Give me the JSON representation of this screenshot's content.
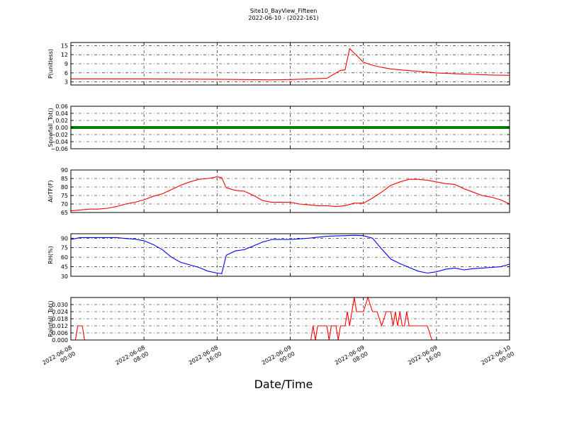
{
  "figure": {
    "title_line1": "Site10_BayView_Fifteen",
    "title_line2": "2022-06-10 - (2022-161)",
    "xlabel": "Date/Time"
  },
  "chart_data": [
    {
      "type": "line",
      "ylabel": "P(unitless)",
      "ylim": [
        2,
        16
      ],
      "yticks": [
        3,
        6,
        9,
        12,
        15
      ],
      "ytick_labels": [
        "3",
        "6",
        "9",
        "12",
        "15"
      ],
      "color": "#ff0000",
      "grid": true,
      "x": [
        0,
        8,
        16,
        22,
        24,
        26,
        28,
        29.5,
        30,
        30.5,
        31,
        31.5,
        32,
        33,
        34,
        35,
        36,
        38,
        40,
        42,
        44,
        46,
        48
      ],
      "y": [
        4,
        4,
        3.9,
        3.7,
        3.8,
        4,
        4.2,
        6.8,
        7,
        14,
        12.5,
        11,
        9.5,
        8.5,
        7.8,
        7.3,
        7,
        6.5,
        6,
        5.7,
        5.5,
        5.3,
        5.2
      ]
    },
    {
      "type": "line",
      "ylabel": "Snowfall_Tot()",
      "ylim": [
        -0.06,
        0.06
      ],
      "yticks": [
        -0.06,
        -0.04,
        -0.02,
        0.0,
        0.02,
        0.04,
        0.06
      ],
      "ytick_labels": [
        "−0.06",
        "−0.04",
        "−0.02",
        "0.00",
        "0.02",
        "0.04",
        "0.06"
      ],
      "color": "#008000",
      "grid": true,
      "x": [
        0,
        48
      ],
      "y": [
        0,
        0
      ]
    },
    {
      "type": "line",
      "ylabel": "AirTF(F)",
      "ylim": [
        65,
        90
      ],
      "yticks": [
        65,
        70,
        75,
        80,
        85,
        90
      ],
      "ytick_labels": [
        "65",
        "70",
        "75",
        "80",
        "85",
        "90"
      ],
      "color": "#ff0000",
      "grid": true,
      "x": [
        0,
        1,
        2,
        3,
        4,
        5,
        6,
        7,
        8,
        9,
        10,
        11,
        12,
        13,
        14,
        15,
        16,
        16.5,
        17,
        18,
        19,
        20,
        21,
        22,
        23,
        24,
        25,
        26,
        27,
        28,
        29,
        30,
        31,
        32,
        33,
        34,
        35,
        36,
        37,
        38,
        39,
        40,
        41,
        42,
        43,
        44,
        45,
        46,
        47,
        48
      ],
      "y": [
        66,
        66.5,
        67,
        67,
        67.5,
        68.5,
        70,
        71,
        72.5,
        74.5,
        76,
        78.5,
        81,
        83,
        84.5,
        85,
        86,
        85.5,
        79.5,
        78,
        77.5,
        75,
        72,
        71,
        71,
        71,
        70,
        69.5,
        69,
        69,
        68.5,
        69,
        70.5,
        70.5,
        73.5,
        77,
        81,
        83,
        84.5,
        84.5,
        84,
        83,
        82,
        81.5,
        79,
        77,
        75,
        74,
        72.5,
        70
      ]
    },
    {
      "type": "line",
      "ylabel": "RH(%)",
      "ylim": [
        30,
        97
      ],
      "yticks": [
        30,
        45,
        60,
        75,
        90
      ],
      "ytick_labels": [
        "30",
        "45",
        "60",
        "75",
        "90"
      ],
      "color": "#0000ff",
      "grid": true,
      "x": [
        0,
        1,
        2,
        3,
        4,
        5,
        6,
        7,
        8,
        9,
        10,
        11,
        12,
        13,
        14,
        15,
        16,
        16.5,
        17,
        18,
        19,
        20,
        21,
        22,
        23,
        24,
        25,
        26,
        27,
        28,
        29,
        30,
        31,
        32,
        33,
        34,
        35,
        36,
        37,
        38,
        39,
        40,
        41,
        42,
        43,
        44,
        45,
        46,
        47,
        48
      ],
      "y": [
        88,
        91,
        91,
        91,
        91,
        91,
        89.5,
        88.5,
        86,
        80,
        72,
        60,
        52,
        48,
        44,
        38,
        35,
        34,
        63,
        70,
        72,
        78,
        84,
        88,
        88,
        88,
        89,
        90,
        91.5,
        93,
        93.5,
        94,
        94.5,
        94,
        90,
        73,
        57,
        50,
        44,
        38,
        35,
        37,
        41,
        43,
        40,
        42,
        43,
        44,
        45,
        49
      ]
    },
    {
      "type": "line",
      "ylabel": "Rainfall_Tot()",
      "ylim": [
        0,
        0.036
      ],
      "yticks": [
        0.0,
        0.006,
        0.012,
        0.018,
        0.024,
        0.03
      ],
      "ytick_labels": [
        "0.000",
        "0.006",
        "0.012",
        "0.018",
        "0.024",
        "0.030"
      ],
      "color": "#ff0000",
      "grid": true,
      "x": [
        0,
        0.5,
        0.75,
        1.25,
        1.5,
        26.25,
        26.5,
        26.75,
        27,
        28,
        28.25,
        28.5,
        29,
        29.25,
        29.5,
        30,
        30.25,
        30.5,
        30.75,
        31,
        31.25,
        31.5,
        32,
        32.5,
        33,
        33.5,
        34,
        34.5,
        35,
        35.25,
        35.5,
        35.75,
        36,
        36.25,
        36.5,
        36.75,
        37,
        37.5,
        38,
        38.5,
        39,
        39.5,
        40,
        48
      ],
      "y": [
        0,
        0,
        0.012,
        0.012,
        0,
        0,
        0.012,
        0,
        0.012,
        0.012,
        0,
        0.012,
        0.012,
        0,
        0.012,
        0.012,
        0.024,
        0.012,
        0.024,
        0.036,
        0.024,
        0.024,
        0.024,
        0.036,
        0.024,
        0.024,
        0.012,
        0.024,
        0.024,
        0.012,
        0.024,
        0.012,
        0.024,
        0.012,
        0.012,
        0.024,
        0.012,
        0.012,
        0.012,
        0.012,
        0.012,
        0,
        0,
        0
      ]
    }
  ],
  "x_axis": {
    "type": "datetime",
    "unit": "hours since 2022-06-08 00:00",
    "xlim": [
      0,
      48
    ],
    "ticks": [
      0,
      8,
      16,
      24,
      32,
      40,
      48
    ],
    "tick_labels": [
      [
        "2022-06-08",
        "00:00"
      ],
      [
        "2022-06-08",
        "08:00"
      ],
      [
        "2022-06-08",
        "16:00"
      ],
      [
        "2022-06-09",
        "00:00"
      ],
      [
        "2022-06-09",
        "08:00"
      ],
      [
        "2022-06-09",
        "16:00"
      ],
      [
        "2022-06-10",
        "00:00"
      ]
    ]
  }
}
